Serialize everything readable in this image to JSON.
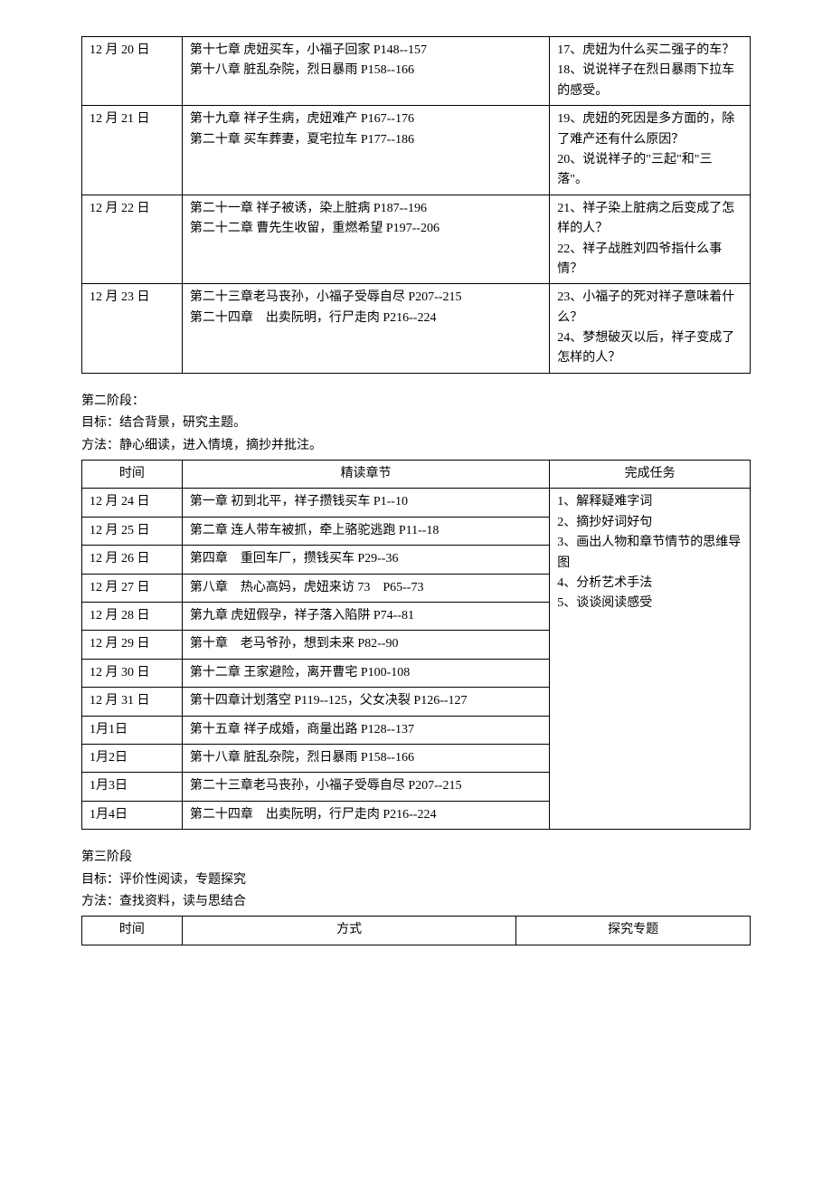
{
  "table1": {
    "rows": [
      {
        "date": "12 月 20 日",
        "content": "第十七章 虎妞买车，小福子回家 P148--157\n第十八章 脏乱杂院，烈日暴雨 P158--166",
        "task": "17、虎妞为什么买二强子的车？\n18、说说祥子在烈日暴雨下拉车的感受。"
      },
      {
        "date": "12 月 21 日",
        "content": "第十九章 祥子生病，虎妞难产 P167--176\n第二十章 买车葬妻，夏宅拉车 P177--186",
        "task": "19、虎妞的死因是多方面的，除了难产还有什么原因？\n20、说说祥子的\"三起\"和\"三落\"。"
      },
      {
        "date": "12 月 22 日",
        "content": "第二十一章 祥子被诱，染上脏病 P187--196\n第二十二章 曹先生收留，重燃希望 P197--206",
        "task": "21、祥子染上脏病之后变成了怎样的人？\n22、祥子战胜刘四爷指什么事情？"
      },
      {
        "date": "12 月 23 日",
        "content": "第二十三章老马丧孙，小福子受辱自尽 P207--215\n第二十四章　出卖阮明，行尸走肉 P216--224",
        "task": "23、小福子的死对祥子意味着什么？\n24、梦想破灭以后，祥子变成了怎样的人？"
      }
    ]
  },
  "section2": {
    "title": "第二阶段：",
    "goal": "目标：结合背景，研究主题。",
    "method": "方法：静心细读，进入情境，摘抄并批注。"
  },
  "table2": {
    "headers": {
      "date": "时间",
      "content": "精读章节",
      "task": "完成任务"
    },
    "task": "1、解释疑难字词\n2、摘抄好词好句\n3、画出人物和章节情节的思维导图\n4、分析艺术手法\n5、谈谈阅读感受",
    "rows": [
      {
        "date": "12 月 24 日",
        "content": "第一章 初到北平，祥子攒钱买车 P1--10"
      },
      {
        "date": "12 月 25 日",
        "content": "第二章 连人带车被抓，牵上骆驼逃跑 P11--18"
      },
      {
        "date": "12 月 26 日",
        "content": "第四章　重回车厂，攒钱买车 P29--36"
      },
      {
        "date": "12 月 27 日",
        "content": "第八章　热心高妈，虎妞来访 73　P65--73"
      },
      {
        "date": "12 月 28 日",
        "content": "第九章 虎妞假孕，祥子落入陷阱 P74--81"
      },
      {
        "date": "12 月 29 日",
        "content": "第十章　老马爷孙，想到未来 P82--90"
      },
      {
        "date": "12 月 30 日",
        "content": "第十二章 王家避险，离开曹宅 P100-108"
      },
      {
        "date": "12 月 31 日",
        "content": "第十四章计划落空 P119--125，父女决裂 P126--127"
      },
      {
        "date": "1月1日",
        "content": "第十五章 祥子成婚，商量出路 P128--137"
      },
      {
        "date": "1月2日",
        "content": "第十八章 脏乱杂院，烈日暴雨 P158--166"
      },
      {
        "date": "1月3日",
        "content": "第二十三章老马丧孙，小福子受辱自尽 P207--215"
      },
      {
        "date": "1月4日",
        "content": "第二十四章　出卖阮明，行尸走肉 P216--224"
      }
    ]
  },
  "section3": {
    "title": "第三阶段",
    "goal": "目标：评价性阅读，专题探究",
    "method": "方法：查找资料，读与思结合"
  },
  "table3": {
    "headers": {
      "date": "时间",
      "method": "方式",
      "topic": "探究专题"
    }
  }
}
